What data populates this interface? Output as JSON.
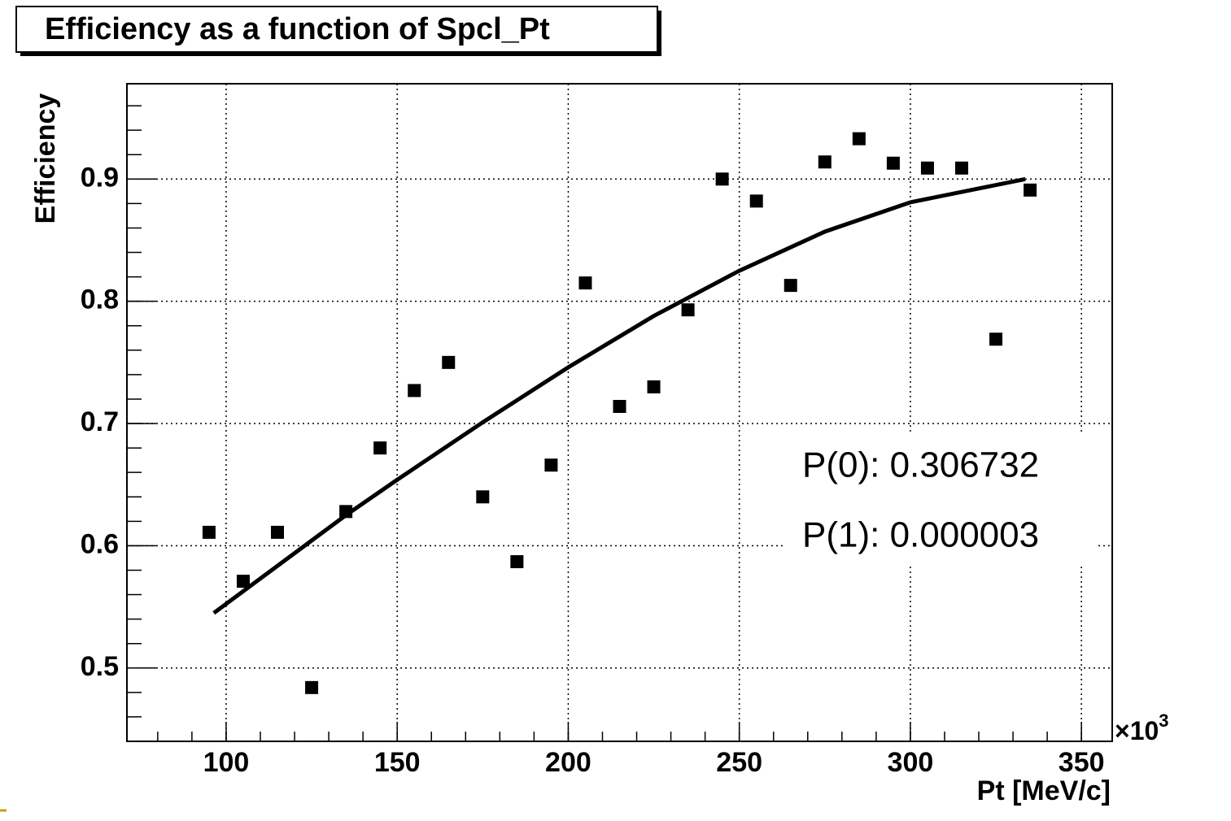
{
  "chart_data": {
    "type": "scatter",
    "title": "Efficiency as a function of Spcl_Pt",
    "ylabel": "Efficiency",
    "xlabel": "Pt [MeV/c]",
    "x_multiplier": {
      "base": "×10",
      "exponent": "3"
    },
    "xlim": [
      71,
      359
    ],
    "ylim": [
      0.44,
      0.978
    ],
    "xticks": [
      100,
      150,
      200,
      250,
      300,
      350
    ],
    "yticks": [
      0.5,
      0.6,
      0.7,
      0.8,
      0.9
    ],
    "xminorticks": [
      80,
      90,
      100,
      110,
      120,
      130,
      140,
      150,
      160,
      170,
      180,
      190,
      200,
      210,
      220,
      230,
      240,
      250,
      260,
      270,
      280,
      290,
      300,
      310,
      320,
      330,
      340,
      350
    ],
    "yminorticks": [
      0.46,
      0.48,
      0.5,
      0.52,
      0.54,
      0.56,
      0.58,
      0.6,
      0.62,
      0.64,
      0.66,
      0.68,
      0.7,
      0.72,
      0.74,
      0.76,
      0.78,
      0.8,
      0.82,
      0.84,
      0.86,
      0.88,
      0.9,
      0.92,
      0.94,
      0.96
    ],
    "grid": true,
    "color": "#000000",
    "x": [
      95,
      105,
      115,
      125,
      135,
      145,
      155,
      165,
      175,
      185,
      195,
      205,
      215,
      225,
      235,
      245,
      255,
      265,
      275,
      285,
      295,
      305,
      315,
      325,
      335
    ],
    "values": [
      0.611,
      0.571,
      0.611,
      0.484,
      0.628,
      0.68,
      0.727,
      0.75,
      0.64,
      0.587,
      0.666,
      0.815,
      0.714,
      0.73,
      0.793,
      0.9,
      0.882,
      0.813,
      0.914,
      0.933,
      0.913,
      0.909,
      0.909,
      0.769,
      0.891
    ],
    "fit": {
      "x": [
        96.4,
        135,
        150,
        175,
        200,
        225,
        250,
        275,
        300,
        333.6
      ],
      "values": [
        0.545,
        0.625,
        0.654,
        0.701,
        0.746,
        0.788,
        0.825,
        0.857,
        0.881,
        0.9
      ]
    },
    "fit_parameters": [
      "P(0): 0.306732",
      "P(1): 0.000003"
    ]
  }
}
